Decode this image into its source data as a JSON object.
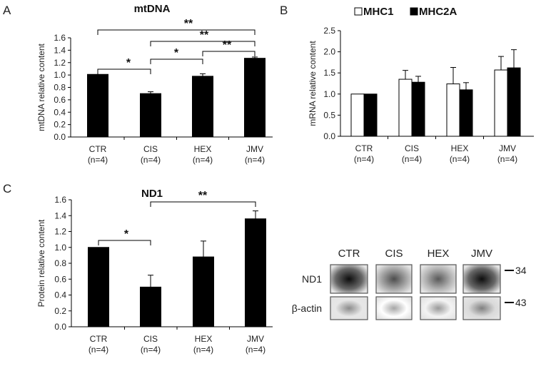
{
  "chart_data": [
    {
      "panel": "A",
      "type": "bar",
      "title": "mtDNA",
      "ylabel": "mtDNA relative content",
      "ylim": [
        0,
        1.6
      ],
      "yticks": [
        "0.0",
        "0.2",
        "0.4",
        "0.6",
        "0.8",
        "1.0",
        "1.2",
        "1.4",
        "1.6"
      ],
      "categories": [
        "CTR",
        "CIS",
        "HEX",
        "JMV"
      ],
      "sublabels": [
        "(n=4)",
        "(n=4)",
        "(n=4)",
        "(n=4)"
      ],
      "series": [
        {
          "values": [
            1.01,
            0.7,
            0.98,
            1.27
          ],
          "errors": [
            0.0,
            0.03,
            0.04,
            0.02
          ],
          "color": "#000000"
        }
      ],
      "significance": [
        {
          "from": "CTR",
          "to": "CIS",
          "label": "*"
        },
        {
          "from": "CIS",
          "to": "HEX",
          "label": "*"
        },
        {
          "from": "HEX",
          "to": "JMV",
          "label": "**"
        },
        {
          "from": "CIS",
          "to": "JMV",
          "label": "**"
        },
        {
          "from": "CTR",
          "to": "JMV",
          "label": "**"
        }
      ]
    },
    {
      "panel": "B",
      "type": "bar",
      "title": "",
      "ylabel": "mRNA relative content",
      "ylim": [
        0,
        2.5
      ],
      "yticks": [
        "0.0",
        "0.5",
        "1.0",
        "1.5",
        "2.0",
        "2.5"
      ],
      "categories": [
        "CTR",
        "CIS",
        "HEX",
        "JMV"
      ],
      "sublabels": [
        "(n=4)",
        "(n=4)",
        "(n=4)",
        "(n=4)"
      ],
      "legend": "top",
      "series": [
        {
          "name": "MHC1",
          "values": [
            1.0,
            1.35,
            1.24,
            1.57
          ],
          "errors": [
            0,
            0.21,
            0.39,
            0.32
          ],
          "color": "#ffffff"
        },
        {
          "name": "MHC2A",
          "values": [
            1.0,
            1.28,
            1.1,
            1.62
          ],
          "errors": [
            0,
            0.14,
            0.17,
            0.43
          ],
          "color": "#000000"
        }
      ],
      "significance": []
    },
    {
      "panel": "C",
      "type": "bar",
      "title": "ND1",
      "ylabel": "Protein relative content",
      "ylim": [
        0,
        1.6
      ],
      "yticks": [
        "0.0",
        "0.2",
        "0.4",
        "0.6",
        "0.8",
        "1.0",
        "1.2",
        "1.4",
        "1.6"
      ],
      "categories": [
        "CTR",
        "CIS",
        "HEX",
        "JMV"
      ],
      "sublabels": [
        "(n=4)",
        "(n=4)",
        "(n=4)",
        "(n=4)"
      ],
      "series": [
        {
          "values": [
            1.0,
            0.5,
            0.88,
            1.36
          ],
          "errors": [
            0,
            0.15,
            0.2,
            0.1
          ],
          "color": "#000000"
        }
      ],
      "significance": [
        {
          "from": "CTR",
          "to": "CIS",
          "label": "*"
        },
        {
          "from": "CIS",
          "to": "JMV",
          "label": "**"
        }
      ]
    }
  ],
  "blot": {
    "lanes": [
      "CTR",
      "CIS",
      "HEX",
      "JMV"
    ],
    "rows": [
      {
        "label": "ND1",
        "marker": "34",
        "intensity": [
          0.95,
          0.7,
          0.65,
          0.95
        ]
      },
      {
        "label": "β-actin",
        "marker": "43",
        "intensity": [
          0.45,
          0.35,
          0.4,
          0.5
        ]
      }
    ]
  }
}
